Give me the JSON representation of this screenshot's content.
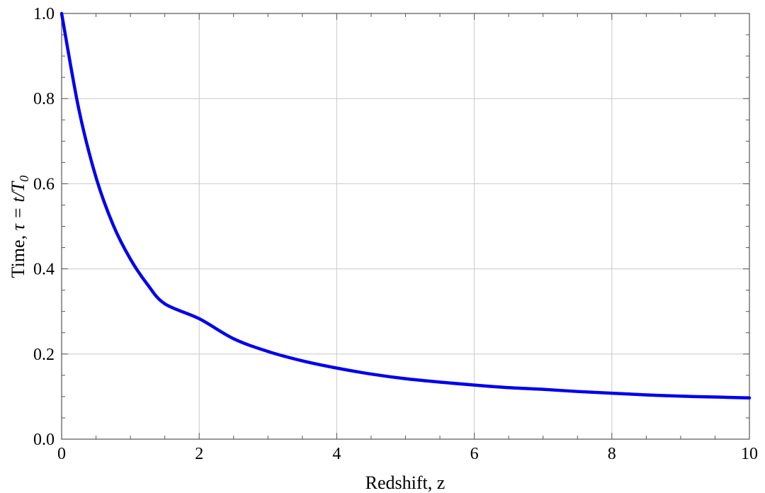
{
  "chart_data": {
    "type": "line",
    "xlabel": "Redshift, z",
    "ylabel": {
      "prefix": "Time, ",
      "math": "τ = t/T",
      "subscript": "0"
    },
    "xlim": [
      0,
      10
    ],
    "ylim": [
      0,
      1.0
    ],
    "x_ticks": [
      "0",
      "2",
      "4",
      "6",
      "8",
      "10"
    ],
    "y_ticks": [
      "0.0",
      "0.2",
      "0.4",
      "0.6",
      "0.8",
      "1.0"
    ],
    "grid": true,
    "series": [
      {
        "color": "#0000ee",
        "x": [
          0,
          0.25,
          0.5,
          0.75,
          1.0,
          1.25,
          1.5,
          2.0,
          2.5,
          3.0,
          3.5,
          4.0,
          4.5,
          5.0,
          5.5,
          6.0,
          6.5,
          7.0,
          7.5,
          8.0,
          8.5,
          9.0,
          9.5,
          10.0
        ],
        "y": [
          1.0,
          0.775,
          0.615,
          0.503,
          0.423,
          0.363,
          0.318,
          0.283,
          0.236,
          0.206,
          0.184,
          0.167,
          0.153,
          0.142,
          0.134,
          0.127,
          0.121,
          0.117,
          0.112,
          0.108,
          0.104,
          0.101,
          0.099,
          0.097
        ]
      }
    ]
  }
}
